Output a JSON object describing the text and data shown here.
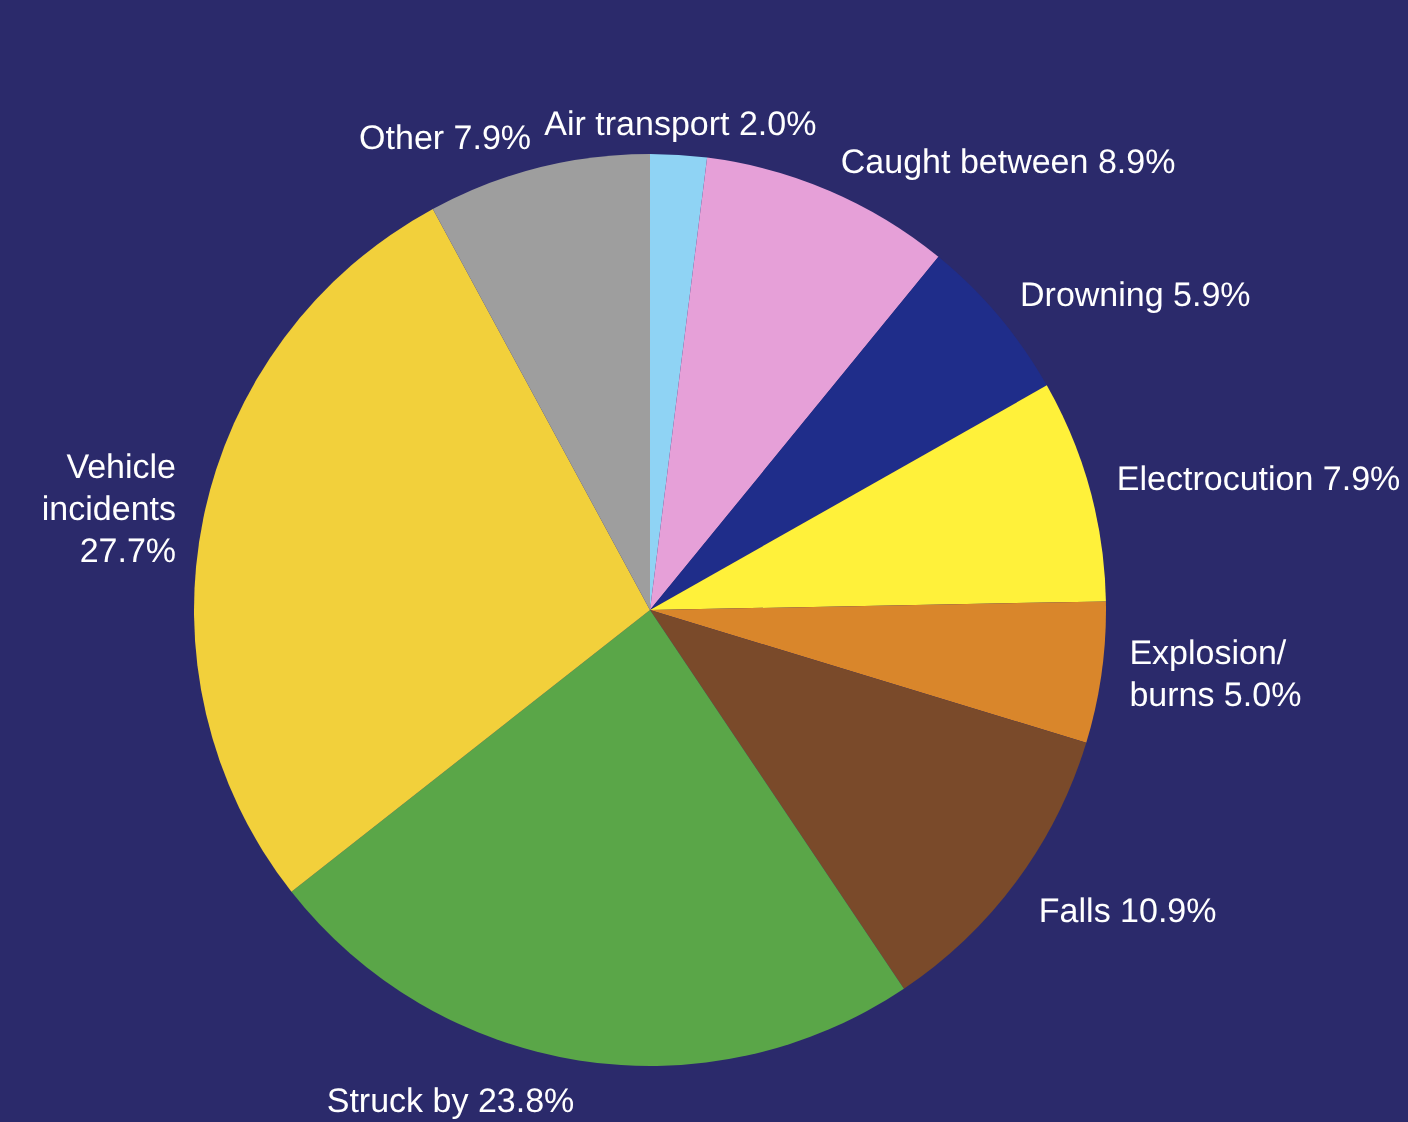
{
  "chart_data": {
    "type": "pie",
    "categories": [
      "Air transport",
      "Caught between",
      "Drowning",
      "Electrocution",
      "Explosion/burns",
      "Falls",
      "Struck by",
      "Vehicle incidents",
      "Other"
    ],
    "values": [
      2.0,
      8.9,
      5.9,
      7.9,
      5.0,
      10.9,
      23.8,
      27.7,
      7.9
    ],
    "value_labels": [
      "2.0%",
      "8.9%",
      "5.9%",
      "7.9%",
      "5.0%",
      "10.9%",
      "23.8%",
      "27.7%",
      "7.9%"
    ],
    "colors": [
      "#8fd3f4",
      "#e6a0d8",
      "#1f2d8a",
      "#fff13a",
      "#d9862b",
      "#7a4a2a",
      "#5aa648",
      "#f2d03b",
      "#9e9e9e"
    ]
  }
}
